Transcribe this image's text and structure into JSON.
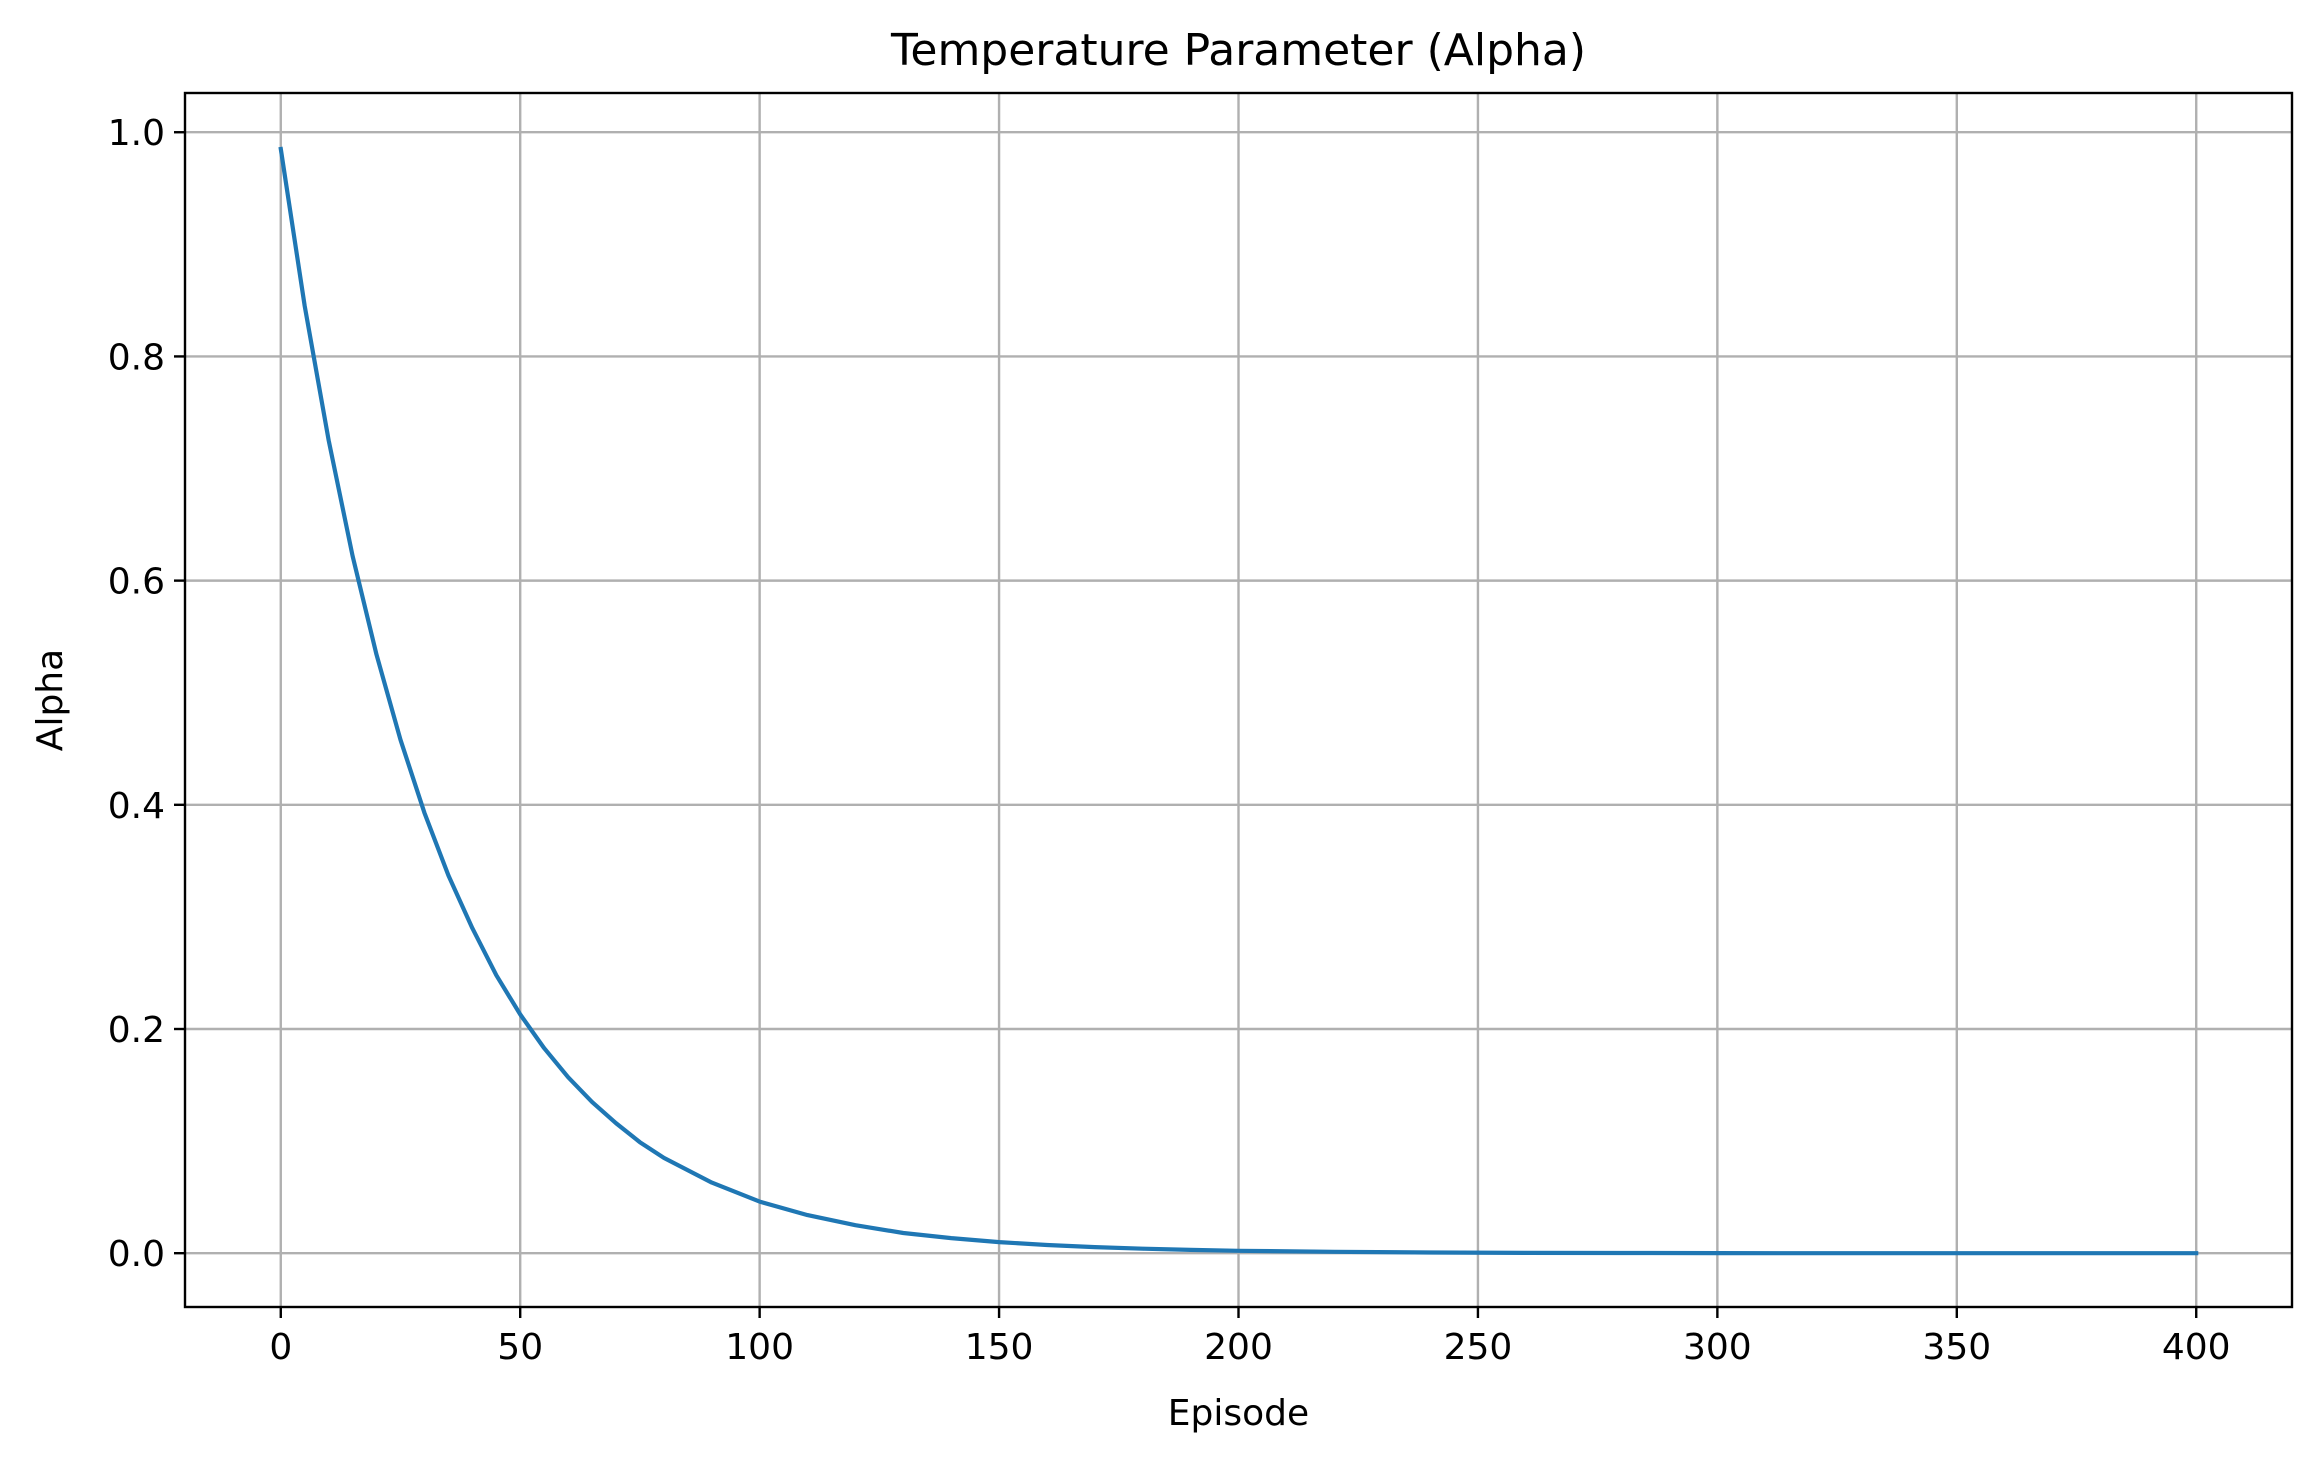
{
  "chart_data": {
    "type": "line",
    "title": "Temperature Parameter (Alpha)",
    "xlabel": "Episode",
    "ylabel": "Alpha",
    "xlim": [
      -20,
      420
    ],
    "ylim": [
      -0.048,
      1.035
    ],
    "xticks": [
      0,
      50,
      100,
      150,
      200,
      250,
      300,
      350,
      400
    ],
    "yticks": [
      0.0,
      0.2,
      0.4,
      0.6,
      0.8,
      1.0
    ],
    "xtick_labels": [
      "0",
      "50",
      "100",
      "150",
      "200",
      "250",
      "300",
      "350",
      "400"
    ],
    "ytick_labels": [
      "0.0",
      "0.2",
      "0.4",
      "0.6",
      "0.8",
      "1.0"
    ],
    "grid": true,
    "series": [
      {
        "color": "#1f77b4",
        "x": [
          0,
          5,
          10,
          15,
          20,
          25,
          30,
          35,
          40,
          45,
          50,
          55,
          60,
          65,
          70,
          75,
          80,
          90,
          100,
          110,
          120,
          130,
          140,
          150,
          160,
          170,
          180,
          190,
          200,
          220,
          240,
          260,
          280,
          300,
          320,
          340,
          360,
          380,
          400
        ],
        "y": [
          0.985,
          0.845,
          0.725,
          0.622,
          0.534,
          0.458,
          0.393,
          0.337,
          0.29,
          0.248,
          0.213,
          0.183,
          0.157,
          0.135,
          0.116,
          0.099,
          0.085,
          0.063,
          0.046,
          0.034,
          0.025,
          0.018,
          0.0135,
          0.0099,
          0.0073,
          0.0054,
          0.004,
          0.0029,
          0.0021,
          0.0012,
          0.0006,
          0.0003,
          0.0002,
          0.0001,
          0.0,
          0.0,
          0.0,
          0.0,
          0.0
        ]
      }
    ]
  }
}
